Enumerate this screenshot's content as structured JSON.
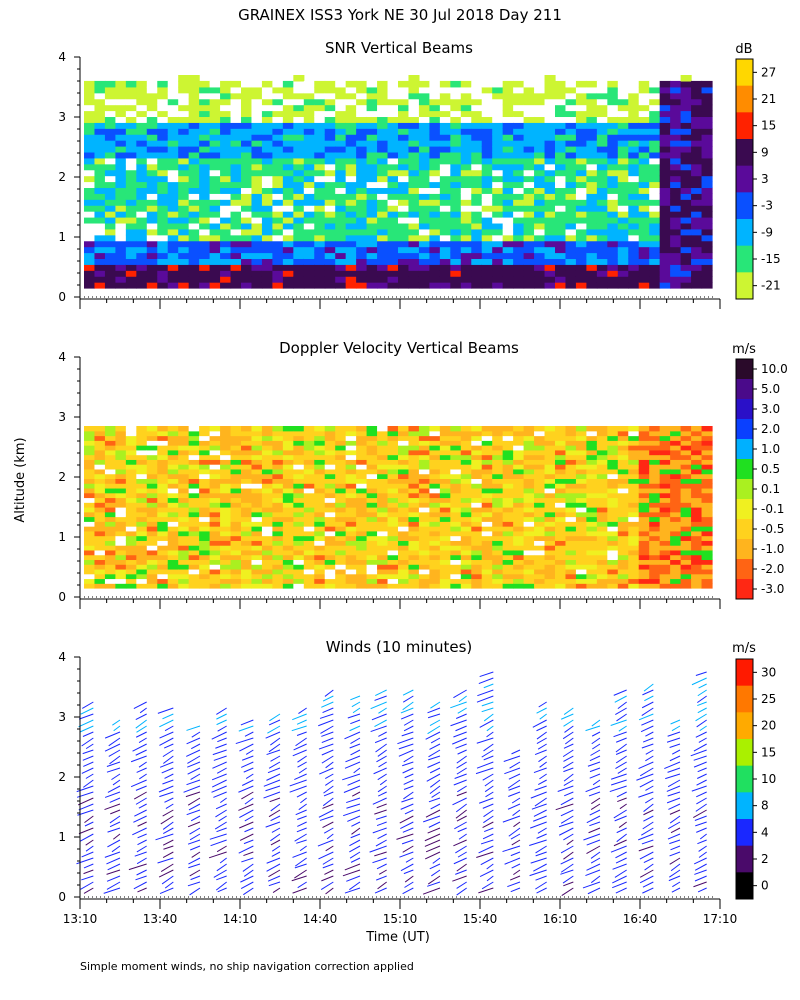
{
  "page_title": "GRAINEX ISS3 York NE  30 Jul 2018 Day 211",
  "footnote": "Simple moment winds, no ship navigation correction applied",
  "y_axis_label": "Altitude (km)",
  "x_axis_label": "Time (UT)",
  "x_ticks": [
    "13:10",
    "13:40",
    "14:10",
    "14:40",
    "15:10",
    "15:40",
    "16:10",
    "16:40",
    "17:10"
  ],
  "y_ticks": [
    "0",
    "1",
    "2",
    "3",
    "4"
  ],
  "colors": {
    "white": "#ffffff"
  },
  "chart_data": [
    {
      "type": "heatmap",
      "title": "SNR Vertical Beams",
      "unit": "dB",
      "xlim": [
        "13:10",
        "17:10"
      ],
      "ylim": [
        0,
        4
      ],
      "x_ticks": [
        "13:10",
        "13:40",
        "14:10",
        "14:40",
        "15:10",
        "15:40",
        "16:10",
        "16:40",
        "17:10"
      ],
      "y_ticks": [
        0,
        1,
        2,
        3,
        4
      ],
      "colorbar_labels": [
        "27",
        "21",
        "15",
        "9",
        "3",
        "-3",
        "-9",
        "-15",
        "-21"
      ],
      "colorbar_colors": [
        "#ffd700",
        "#ff8c00",
        "#ff2200",
        "#3a0a50",
        "#5a0a9a",
        "#0a50ff",
        "#00b4ff",
        "#28e678",
        "#cdf532"
      ],
      "bands": [
        {
          "range_km": [
            0.1,
            0.4
          ],
          "approx_db": 7
        },
        {
          "range_km": [
            0.4,
            0.9
          ],
          "approx_db": -5
        },
        {
          "range_km": [
            0.9,
            2.3
          ],
          "approx_db": -14
        },
        {
          "range_km": [
            2.3,
            2.8
          ],
          "approx_db": -9
        },
        {
          "range_km": [
            2.8,
            3.7
          ],
          "approx_db": -20
        }
      ]
    },
    {
      "type": "heatmap",
      "title": "Doppler Velocity Vertical Beams",
      "unit": "m/s",
      "xlim": [
        "13:10",
        "17:10"
      ],
      "ylim": [
        0,
        4
      ],
      "x_ticks": [
        "13:10",
        "13:40",
        "14:10",
        "14:40",
        "15:10",
        "15:40",
        "16:10",
        "16:40",
        "17:10"
      ],
      "y_ticks": [
        0,
        1,
        2,
        3,
        4
      ],
      "colorbar_labels": [
        "10.0",
        "5.0",
        "3.0",
        "2.0",
        "1.0",
        "0.5",
        "0.1",
        "-0.1",
        "-0.5",
        "-1.0",
        "-2.0",
        "-3.0"
      ],
      "colorbar_colors": [
        "#2a0a2a",
        "#4a0a8a",
        "#2a10c8",
        "#0a40ff",
        "#00b0ff",
        "#20e020",
        "#aaf020",
        "#f0f020",
        "#ffd21e",
        "#ffb41e",
        "#ff6414",
        "#ff2814"
      ],
      "bands": [
        {
          "range_km": [
            0.1,
            2.9
          ],
          "approx_ms": -0.4
        },
        {
          "range_km": [
            2.9,
            3.0
          ],
          "approx_ms": 0.3
        }
      ]
    },
    {
      "type": "wind_barbs",
      "title": "Winds (10 minutes)",
      "unit": "m/s",
      "xlim": [
        "13:10",
        "17:10"
      ],
      "ylim": [
        0,
        4
      ],
      "x_ticks": [
        "13:10",
        "13:40",
        "14:10",
        "14:40",
        "15:10",
        "15:40",
        "16:10",
        "16:40",
        "17:10"
      ],
      "y_ticks": [
        0,
        1,
        2,
        3,
        4
      ],
      "colorbar_labels": [
        "30",
        "25",
        "20",
        "15",
        "10",
        "8",
        "4",
        "2",
        "0"
      ],
      "colorbar_colors": [
        "#ff1a00",
        "#ff7800",
        "#ffaa00",
        "#aaf000",
        "#20e060",
        "#00b4ff",
        "#1a28ff",
        "#4a0a6a",
        "#000000"
      ],
      "series": [
        {
          "time": "13:15",
          "top_km": 3.3
        },
        {
          "time": "13:25",
          "top_km": 3.0
        },
        {
          "time": "13:35",
          "top_km": 3.3
        },
        {
          "time": "13:45",
          "top_km": 3.2
        },
        {
          "time": "13:55",
          "top_km": 2.9
        },
        {
          "time": "14:05",
          "top_km": 3.2
        },
        {
          "time": "14:15",
          "top_km": 3.0
        },
        {
          "time": "14:25",
          "top_km": 3.1
        },
        {
          "time": "14:35",
          "top_km": 3.2
        },
        {
          "time": "14:45",
          "top_km": 3.5
        },
        {
          "time": "14:55",
          "top_km": 3.4
        },
        {
          "time": "15:05",
          "top_km": 3.5
        },
        {
          "time": "15:15",
          "top_km": 3.5
        },
        {
          "time": "15:25",
          "top_km": 3.3
        },
        {
          "time": "15:35",
          "top_km": 3.5
        },
        {
          "time": "15:45",
          "top_km": 3.8
        },
        {
          "time": "15:55",
          "top_km": 2.5
        },
        {
          "time": "16:05",
          "top_km": 3.3
        },
        {
          "time": "16:15",
          "top_km": 3.2
        },
        {
          "time": "16:25",
          "top_km": 3.0
        },
        {
          "time": "16:35",
          "top_km": 3.5
        },
        {
          "time": "16:45",
          "top_km": 3.6
        },
        {
          "time": "16:55",
          "top_km": 3.0
        },
        {
          "time": "17:05",
          "top_km": 3.8
        }
      ]
    }
  ]
}
